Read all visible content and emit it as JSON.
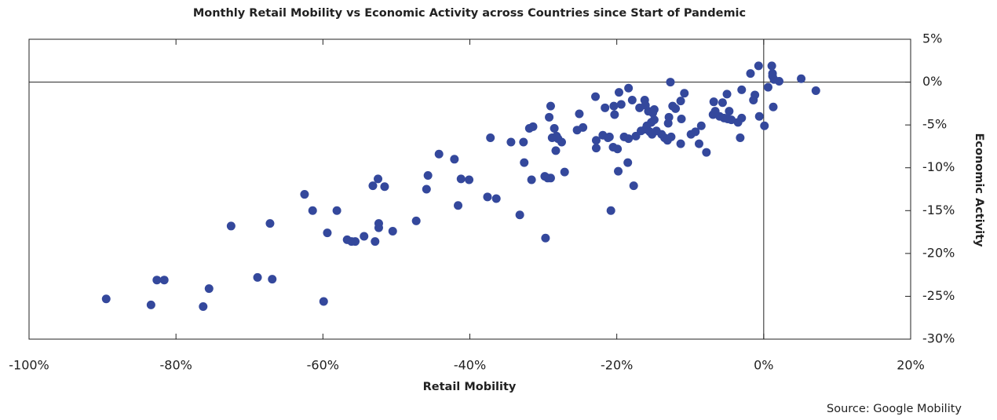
{
  "chart_data": {
    "type": "scatter",
    "title": "Monthly Retail Mobility vs Economic Activity across Countries since Start of Pandemic",
    "x_label": "Retail Mobility",
    "y_label": "Economic Activity",
    "source": "Source: Google Mobility",
    "color": "#34489c",
    "zero_lines": true,
    "y_axis_side": "right",
    "xlim": [
      -100,
      20
    ],
    "xticks": [
      {
        "value": -100,
        "label": "-100%"
      },
      {
        "value": -80,
        "label": "-80%"
      },
      {
        "value": -60,
        "label": "-60%"
      },
      {
        "value": -40,
        "label": "-40%"
      },
      {
        "value": -20,
        "label": "-20%"
      },
      {
        "value": 0,
        "label": "0%"
      },
      {
        "value": 20,
        "label": "20%"
      }
    ],
    "ylim": [
      -30,
      5
    ],
    "yticks": [
      {
        "value": 5,
        "label": "5%"
      },
      {
        "value": 0,
        "label": "0%"
      },
      {
        "value": -5,
        "label": "-5%"
      },
      {
        "value": -10,
        "label": "-10%"
      },
      {
        "value": -15,
        "label": "-15%"
      },
      {
        "value": -20,
        "label": "-20%"
      },
      {
        "value": -25,
        "label": "-25%"
      },
      {
        "value": -30,
        "label": "-30%"
      }
    ],
    "x": [
      -89.5,
      -83.4,
      -82.6,
      -81.6,
      -76.3,
      -75.5,
      -72.5,
      -68.9,
      -67.2,
      -66.9,
      -62.5,
      -61.4,
      -59.9,
      -59.4,
      -58.1,
      -56.7,
      -56.1,
      -55.6,
      -54.4,
      -53.2,
      -52.9,
      -52.5,
      -52.4,
      -52.4,
      -51.6,
      -50.5,
      -47.3,
      -45.9,
      -45.7,
      -44.2,
      -42.1,
      -41.6,
      -41.2,
      -40.1,
      -37.6,
      -37.2,
      -36.4,
      -34.4,
      -33.2,
      -32.7,
      -32.6,
      -31.9,
      -31.6,
      -31.4,
      -29.8,
      -29.7,
      -29.4,
      -29.2,
      -29.0,
      -29.0,
      -28.8,
      -28.5,
      -28.3,
      -28.2,
      -28.0,
      -27.5,
      -27.1,
      -25.4,
      -25.1,
      -24.6,
      -22.9,
      -22.8,
      -22.8,
      -21.9,
      -21.6,
      -21.2,
      -21.0,
      -20.8,
      -20.5,
      -20.4,
      -20.3,
      -19.9,
      -19.8,
      -19.7,
      -19.4,
      -19.0,
      -18.5,
      -18.4,
      -18.4,
      -17.9,
      -17.7,
      -17.4,
      -16.9,
      -16.7,
      -16.2,
      -16.1,
      -16.1,
      -15.9,
      -15.7,
      -15.5,
      -15.3,
      -15.2,
      -15.1,
      -14.9,
      -14.9,
      -14.6,
      -13.9,
      -13.5,
      -13.1,
      -12.9,
      -13.0,
      -12.7,
      -12.6,
      -12.4,
      -12.0,
      -11.3,
      -11.3,
      -11.2,
      -10.8,
      -9.9,
      -9.3,
      -8.8,
      -8.5,
      -7.8,
      -6.9,
      -6.8,
      -6.6,
      -6.0,
      -5.6,
      -5.4,
      -5.0,
      -4.9,
      -4.7,
      -4.4,
      -3.5,
      -3.2,
      -3.0,
      -3.0,
      -1.8,
      -1.4,
      -1.2,
      -0.7,
      -0.6,
      0.1,
      0.6,
      1.1,
      1.2,
      1.2,
      1.3,
      1.4,
      2.1,
      5.1,
      7.1
    ],
    "values": [
      -25.3,
      -26.0,
      -23.1,
      -23.1,
      -26.2,
      -24.1,
      -16.8,
      -22.8,
      -16.5,
      -23.0,
      -13.1,
      -15.0,
      -25.6,
      -17.6,
      -15.0,
      -18.4,
      -18.6,
      -18.6,
      -18.0,
      -12.1,
      -18.6,
      -11.3,
      -17.0,
      -16.5,
      -12.2,
      -17.4,
      -16.2,
      -12.5,
      -10.9,
      -8.4,
      -9.0,
      -14.4,
      -11.3,
      -11.4,
      -13.4,
      -6.5,
      -13.6,
      -7.0,
      -15.5,
      -7.0,
      -9.4,
      -5.4,
      -11.4,
      -5.2,
      -11.0,
      -18.2,
      -11.2,
      -4.1,
      -11.2,
      -2.8,
      -6.5,
      -5.4,
      -8.0,
      -6.3,
      -6.6,
      -7.0,
      -10.5,
      -5.6,
      -3.7,
      -5.3,
      -1.7,
      -6.8,
      -7.7,
      -6.2,
      -3.0,
      -6.5,
      -6.4,
      -15.0,
      -7.6,
      -2.8,
      -3.8,
      -7.8,
      -10.4,
      -1.2,
      -2.6,
      -6.4,
      -9.4,
      -0.7,
      -6.6,
      -2.1,
      -12.1,
      -6.3,
      -3.0,
      -5.7,
      -2.1,
      -2.7,
      -5.5,
      -5.1,
      -3.4,
      -5.8,
      -4.7,
      -6.1,
      -3.6,
      -3.2,
      -4.4,
      -5.7,
      -6.1,
      -6.5,
      -6.8,
      -4.1,
      -4.8,
      0,
      -6.4,
      -2.8,
      -3.1,
      -2.2,
      -7.2,
      -4.3,
      -1.3,
      -6.1,
      -5.8,
      -7.2,
      -5.1,
      -8.2,
      -3.8,
      -2.3,
      -3.4,
      -4.0,
      -2.4,
      -4.2,
      -1.4,
      -4.3,
      -3.4,
      -4.4,
      -4.7,
      -6.5,
      -0.9,
      -4.2,
      1.0,
      -2.1,
      -1.5,
      1.9,
      -4.0,
      -5.1,
      -0.6,
      1.9,
      1.0,
      0.7,
      -2.9,
      0.3,
      0.1,
      0.4,
      -1.0
    ]
  }
}
